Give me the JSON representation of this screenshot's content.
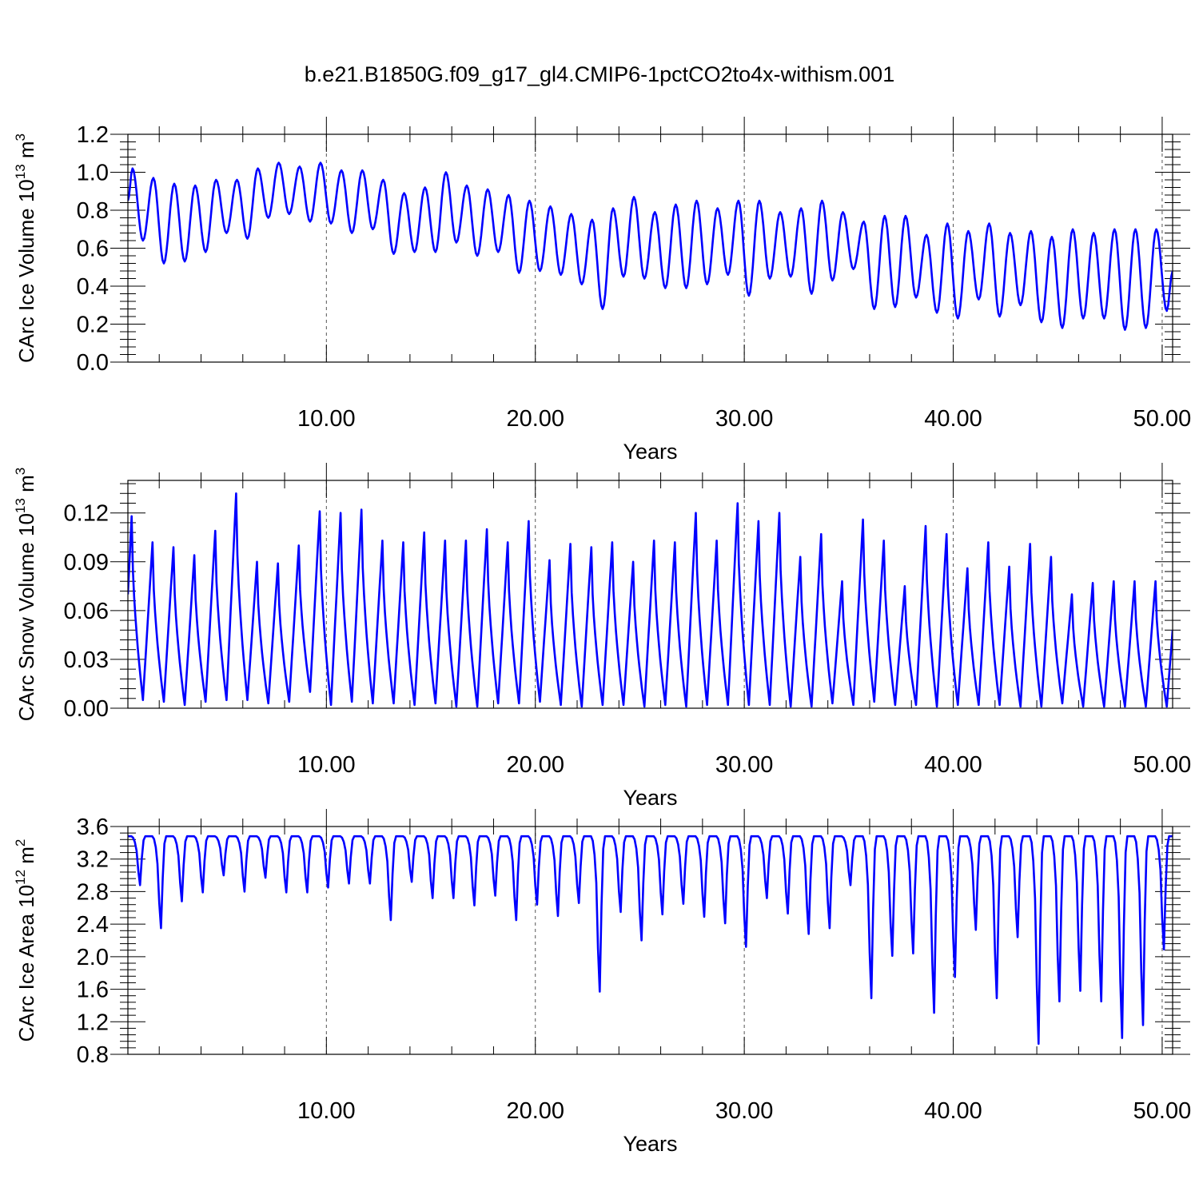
{
  "title": "b.e21.B1850G.f09_g17_gl4.CMIP6-1pctCO2to4x-withism.001",
  "chart_data": [
    {
      "type": "line",
      "ylabel_text": "CArc Ice Volume 10",
      "ylabel_exp": "13",
      "ylabel_unit": " m",
      "ylabel_unit_exp": "3",
      "xlabel": "Years",
      "xlim": [
        0.5,
        50.5
      ],
      "ylim": [
        0.0,
        1.2
      ],
      "xticks": [
        10,
        20,
        30,
        40,
        50
      ],
      "xtick_labels": [
        "10.00",
        "20.00",
        "30.00",
        "40.00",
        "50.00"
      ],
      "yticks": [
        0.0,
        0.2,
        0.4,
        0.6,
        0.8,
        1.0,
        1.2
      ],
      "ytick_labels": [
        "0.0",
        "0.2",
        "0.4",
        "0.6",
        "0.8",
        "1.0",
        "1.2"
      ],
      "grid": "dashed vertical at x ticks",
      "series_color": "#0000ff",
      "peaks": [
        1.02,
        0.97,
        0.94,
        0.93,
        0.96,
        0.96,
        1.02,
        1.05,
        1.03,
        1.05,
        1.01,
        1.01,
        0.96,
        0.89,
        0.92,
        1.0,
        0.93,
        0.91,
        0.88,
        0.85,
        0.82,
        0.78,
        0.75,
        0.81,
        0.87,
        0.79,
        0.83,
        0.85,
        0.81,
        0.85,
        0.85,
        0.79,
        0.81,
        0.85,
        0.79,
        0.74,
        0.77,
        0.77,
        0.67,
        0.73,
        0.69,
        0.73,
        0.68,
        0.69,
        0.66,
        0.7,
        0.68,
        0.7,
        0.7,
        0.7
      ],
      "troughs": [
        0.64,
        0.52,
        0.53,
        0.58,
        0.68,
        0.65,
        0.76,
        0.78,
        0.74,
        0.73,
        0.68,
        0.7,
        0.57,
        0.58,
        0.58,
        0.63,
        0.56,
        0.58,
        0.47,
        0.48,
        0.46,
        0.41,
        0.28,
        0.45,
        0.44,
        0.39,
        0.39,
        0.41,
        0.46,
        0.35,
        0.44,
        0.45,
        0.36,
        0.43,
        0.49,
        0.28,
        0.29,
        0.34,
        0.26,
        0.23,
        0.33,
        0.24,
        0.3,
        0.21,
        0.18,
        0.23,
        0.23,
        0.17,
        0.18,
        0.27
      ],
      "start_value": 0.85,
      "end_value": 0.48
    },
    {
      "type": "line",
      "ylabel_text": "CArc Snow Volume 10",
      "ylabel_exp": "13",
      "ylabel_unit": " m",
      "ylabel_unit_exp": "3",
      "xlabel": "Years",
      "xlim": [
        0.5,
        50.5
      ],
      "ylim": [
        0.0,
        0.14
      ],
      "xticks": [
        10,
        20,
        30,
        40,
        50
      ],
      "xtick_labels": [
        "10.00",
        "20.00",
        "30.00",
        "40.00",
        "50.00"
      ],
      "yticks": [
        0.0,
        0.03,
        0.06,
        0.09,
        0.12
      ],
      "ytick_labels": [
        "0.00",
        "0.03",
        "0.06",
        "0.09",
        "0.12"
      ],
      "grid": "dashed vertical at x ticks",
      "series_color": "#0000ff",
      "peaks": [
        0.118,
        0.102,
        0.099,
        0.094,
        0.109,
        0.132,
        0.09,
        0.089,
        0.1,
        0.121,
        0.12,
        0.122,
        0.103,
        0.102,
        0.108,
        0.103,
        0.103,
        0.11,
        0.102,
        0.115,
        0.091,
        0.101,
        0.099,
        0.102,
        0.09,
        0.103,
        0.102,
        0.12,
        0.103,
        0.126,
        0.115,
        0.12,
        0.093,
        0.107,
        0.078,
        0.116,
        0.103,
        0.075,
        0.112,
        0.107,
        0.086,
        0.102,
        0.087,
        0.101,
        0.093,
        0.07,
        0.077,
        0.078,
        0.078,
        0.078
      ],
      "troughs": [
        0.005,
        0.004,
        0.002,
        0.004,
        0.005,
        0.005,
        0.003,
        0.004,
        0.01,
        0.002,
        0.004,
        0.003,
        0.003,
        0.002,
        0.003,
        0.001,
        0.001,
        0.003,
        0.003,
        0.004,
        0.002,
        0.001,
        0.002,
        0.002,
        0.001,
        0.002,
        0.001,
        0.002,
        0.002,
        0.002,
        0.002,
        0.001,
        0.001,
        0.003,
        0.002,
        0.004,
        0.002,
        0.002,
        0.001,
        0.002,
        0.002,
        0.002,
        0.001,
        0.001,
        0.003,
        0.001,
        0.001,
        0.001,
        0.001,
        0.001
      ],
      "start_value": 0.07,
      "end_value": 0.048
    },
    {
      "type": "line",
      "ylabel_text": "CArc Ice Area 10",
      "ylabel_exp": "12",
      "ylabel_unit": " m",
      "ylabel_unit_exp": "2",
      "xlabel": "Years",
      "xlim": [
        0.5,
        50.5
      ],
      "ylim": [
        0.8,
        3.6
      ],
      "xticks": [
        10,
        20,
        30,
        40,
        50
      ],
      "xtick_labels": [
        "10.00",
        "20.00",
        "30.00",
        "40.00",
        "50.00"
      ],
      "yticks": [
        0.8,
        1.2,
        1.6,
        2.0,
        2.4,
        2.8,
        3.2,
        3.6
      ],
      "ytick_labels": [
        "0.8",
        "1.2",
        "1.6",
        "2.0",
        "2.4",
        "2.8",
        "3.2",
        "3.6"
      ],
      "grid": "dashed vertical at x ticks",
      "series_color": "#0000ff",
      "plateau": 3.48,
      "minima": [
        2.88,
        2.35,
        2.68,
        2.79,
        3.0,
        2.8,
        2.97,
        2.79,
        2.79,
        2.85,
        2.9,
        2.9,
        2.45,
        2.92,
        2.72,
        2.72,
        2.63,
        2.75,
        2.45,
        2.64,
        2.5,
        2.66,
        1.57,
        2.55,
        2.2,
        2.52,
        2.65,
        2.49,
        2.41,
        2.12,
        2.72,
        2.53,
        2.28,
        2.35,
        2.88,
        1.49,
        2.01,
        2.04,
        1.31,
        1.75,
        2.33,
        1.49,
        2.24,
        0.93,
        1.45,
        1.58,
        1.45,
        1.0,
        1.16,
        2.09
      ],
      "start_value": 3.48,
      "end_value": 3.48
    }
  ]
}
